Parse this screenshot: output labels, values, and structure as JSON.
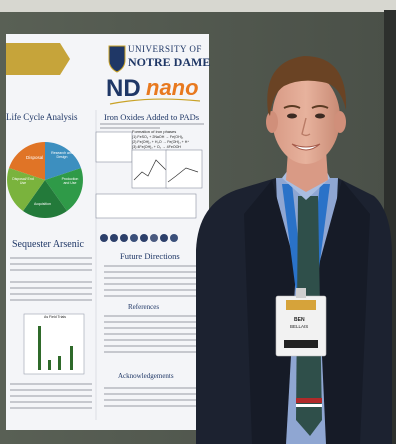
{
  "poster": {
    "logo_university_line1": "UNIVERSITY OF",
    "logo_university_line2": "NOTRE DAME",
    "logo_nd": "ND",
    "logo_nano": "nano",
    "section_life_cycle": "Life Cycle Analysis",
    "section_iron_oxides": "Iron Oxides Added to PADs",
    "section_sequester": "Sequester Arsenic",
    "section_future": "Future Directions",
    "section_references": "References",
    "section_acknowledgements": "Acknowledgements",
    "pie_labels": [
      "Disposal",
      "Research and Design",
      "Production and Use",
      "Acquisition",
      "Disposal/ End Use"
    ],
    "iron_formation_title": "Formation of iron phases",
    "iron_equations": [
      "(1) FeSO₄ + 2NaOH → Fe(OH)₂",
      "(2) Fe(OH)₂ + H₂O → Fe(OH)₃ + H⁺",
      "(3) 4Fe(OH)₂ + O₂ → 4FeOOH"
    ],
    "chart_title": "As Field Trials"
  },
  "badge": {
    "name_line1": "BEN",
    "name_line2": "BELLAIS"
  },
  "colors": {
    "poster_paper": "#f4f5f8",
    "nd_gold": "#c9a227",
    "nano_orange": "#e8791f",
    "nd_navy": "#1f3766",
    "pie_orange": "#e07426",
    "pie_blue": "#3d8fbf",
    "pie_green": "#2f9a48",
    "pie_lime": "#7ab33d",
    "suit": "#1c2230",
    "lanyard": "#2a72c8",
    "tie": "#2f4f4a"
  }
}
